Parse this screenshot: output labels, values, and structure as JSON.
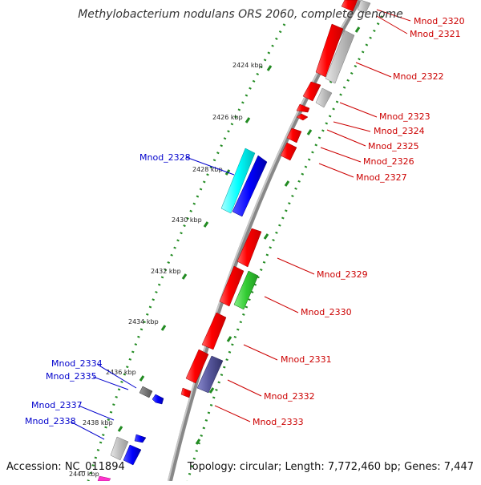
{
  "title": "Methylobacterium nodulans ORS 2060, complete genome",
  "footer": {
    "accession": "Accession: NC_011894",
    "topology": "Topology: circular; Length: 7,772,460 bp; Genes: 7,447"
  },
  "ticks": [
    "2424 kbp",
    "2426 kbp",
    "2428 kbp",
    "2430 kbp",
    "2432 kbp",
    "2434 kbp",
    "2436 kbp",
    "2438 kbp",
    "2440 kbp"
  ],
  "colors": {
    "red": "#ff0000",
    "gray": "#bdbdbd",
    "cyan": "#00ffff",
    "blue": "#0000ff",
    "green": "#33cc33",
    "purple": "#55559a",
    "darkgray": "#666666",
    "magenta": "#ff33cc",
    "right_label": "#cc0000",
    "left_label": "#0000cc",
    "backbone": "#888888",
    "tick_dots": "#228b22"
  },
  "right_labels": [
    "Mnod_2320",
    "Mnod_2321",
    "Mnod_2322",
    "Mnod_2323",
    "Mnod_2324",
    "Mnod_2325",
    "Mnod_2326",
    "Mnod_2327",
    "Mnod_2329",
    "Mnod_2330",
    "Mnod_2331",
    "Mnod_2332",
    "Mnod_2333"
  ],
  "left_labels": [
    "Mnod_2328",
    "Mnod_2334",
    "Mnod_2335",
    "Mnod_2337",
    "Mnod_2338"
  ]
}
